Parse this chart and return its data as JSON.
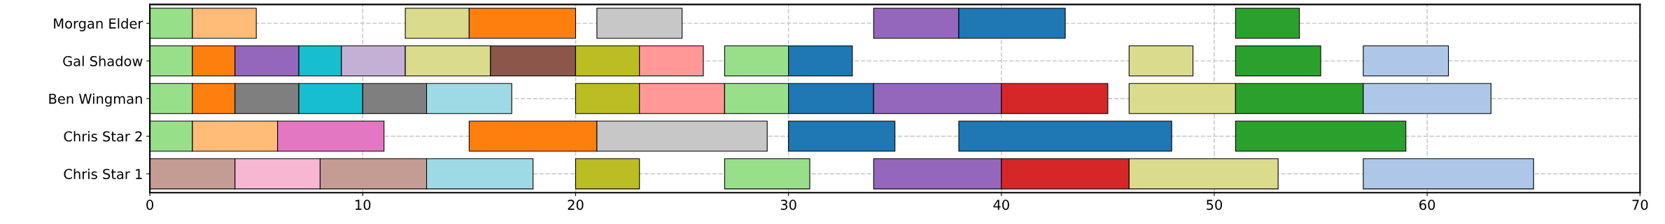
{
  "chart_data": {
    "type": "bar",
    "orientation": "horizontal",
    "categories": [
      "Morgan Elder",
      "Gal Shadow",
      "Ben Wingman",
      "Chris Star 2",
      "Chris Star 1"
    ],
    "xlim": [
      0,
      70
    ],
    "xticks": [
      0,
      10,
      20,
      30,
      40,
      50,
      60,
      70
    ],
    "grid": true,
    "line_style": "dashed",
    "series": [
      {
        "base": [
          0,
          0,
          0,
          0,
          0
        ],
        "values": [
          2,
          2,
          2,
          2,
          4
        ],
        "colors": [
          "#98df8a",
          "#98df8a",
          "#98df8a",
          "#98df8a",
          "#c49c94"
        ]
      },
      {
        "base": [
          2,
          2,
          2,
          2,
          4
        ],
        "values": [
          3,
          2,
          2,
          4,
          4
        ],
        "colors": [
          "#ffbb78",
          "#ff7f0e",
          "#ff7f0e",
          "#ffbb78",
          "#f7b6d2"
        ]
      },
      {
        "base": [
          12,
          4,
          4,
          6,
          8
        ],
        "values": [
          3,
          3,
          3,
          5,
          5
        ],
        "colors": [
          "#dbdb8d",
          "#9467bd",
          "#7f7f7f",
          "#e377c2",
          "#c49c94"
        ]
      },
      {
        "base": [
          15,
          7,
          7,
          15,
          13
        ],
        "values": [
          5,
          2,
          3,
          6,
          5
        ],
        "colors": [
          "#ff7f0e",
          "#17becf",
          "#17becf",
          "#ff7f0e",
          "#9edae5"
        ]
      },
      {
        "base": [
          21,
          9,
          10,
          21,
          20
        ],
        "values": [
          4,
          3,
          3,
          8,
          3
        ],
        "colors": [
          "#c7c7c7",
          "#c5b0d5",
          "#7f7f7f",
          "#c7c7c7",
          "#bcbd22"
        ]
      },
      {
        "base": [
          34,
          12,
          13,
          30,
          27
        ],
        "values": [
          4,
          4,
          4,
          5,
          4
        ],
        "colors": [
          "#9467bd",
          "#dbdb8d",
          "#9edae5",
          "#1f77b4",
          "#98df8a"
        ]
      },
      {
        "base": [
          38,
          16,
          20,
          38,
          34
        ],
        "values": [
          5,
          4,
          3,
          10,
          6
        ],
        "colors": [
          "#1f77b4",
          "#8c564b",
          "#bcbd22",
          "#1f77b4",
          "#9467bd"
        ]
      },
      {
        "base": [
          51,
          20,
          23,
          51,
          40
        ],
        "values": [
          3,
          3,
          4,
          8,
          6
        ],
        "colors": [
          "#2ca02c",
          "#bcbd22",
          "#ff9896",
          "#2ca02c",
          "#d62728"
        ]
      },
      {
        "base": [
          null,
          23,
          27,
          null,
          46
        ],
        "values": [
          null,
          3,
          3,
          null,
          7
        ],
        "colors": [
          null,
          "#ff9896",
          "#98df8a",
          null,
          "#dbdb8d"
        ]
      },
      {
        "base": [
          null,
          27,
          30,
          null,
          57
        ],
        "values": [
          null,
          3,
          4,
          null,
          8
        ],
        "colors": [
          null,
          "#98df8a",
          "#1f77b4",
          null,
          "#aec7e8"
        ]
      },
      {
        "base": [
          null,
          30,
          34,
          null,
          null
        ],
        "values": [
          null,
          3,
          6,
          null,
          null
        ],
        "colors": [
          null,
          "#1f77b4",
          "#9467bd",
          null,
          null
        ]
      },
      {
        "base": [
          null,
          46,
          40,
          null,
          null
        ],
        "values": [
          null,
          3,
          5,
          null,
          null
        ],
        "colors": [
          null,
          "#dbdb8d",
          "#d62728",
          null,
          null
        ]
      },
      {
        "base": [
          null,
          51,
          46,
          null,
          null
        ],
        "values": [
          null,
          4,
          5,
          null,
          null
        ],
        "colors": [
          null,
          "#2ca02c",
          "#dbdb8d",
          null,
          null
        ]
      },
      {
        "base": [
          null,
          57,
          51,
          null,
          null
        ],
        "values": [
          null,
          4,
          6,
          null,
          null
        ],
        "colors": [
          null,
          "#aec7e8",
          "#2ca02c",
          null,
          null
        ]
      },
      {
        "base": [
          null,
          null,
          57,
          null,
          null
        ],
        "values": [
          null,
          null,
          6,
          null,
          null
        ],
        "colors": [
          null,
          null,
          "#aec7e8",
          null,
          null
        ]
      }
    ]
  }
}
